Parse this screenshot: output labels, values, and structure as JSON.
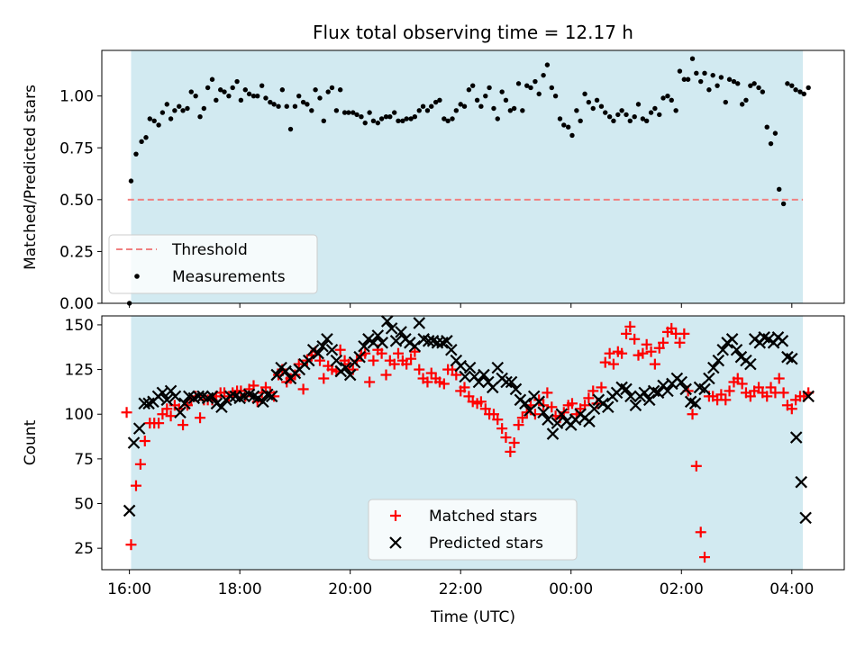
{
  "chart_data": [
    {
      "type": "scatter",
      "title": "Flux total observing time = 12.17 h",
      "xlabel": "",
      "ylabel": "Matched/Predicted stars",
      "xlim": [
        -0.5,
        12.95
      ],
      "ylim": [
        0,
        1.22
      ],
      "yticks": [
        0.0,
        0.25,
        0.5,
        0.75,
        1.0
      ],
      "ytick_labels": [
        "0.00",
        "0.25",
        "0.50",
        "0.75",
        "1.00"
      ],
      "shaded_span": [
        0.03,
        12.2
      ],
      "shade_color": "#add8e6",
      "legend": [
        "Threshold",
        "Measurements"
      ],
      "legend_position": "lower-left",
      "threshold": {
        "name": "Threshold",
        "y": 0.5,
        "x": [
          -0.03,
          12.2
        ],
        "color": "#f08080",
        "style": "dashed"
      },
      "series": [
        {
          "name": "Measurements",
          "color": "#000000",
          "x": [
            0.0,
            0.03,
            0.12,
            0.22,
            0.3,
            0.37,
            0.45,
            0.53,
            0.6,
            0.68,
            0.75,
            0.82,
            0.9,
            0.97,
            1.05,
            1.12,
            1.2,
            1.28,
            1.35,
            1.42,
            1.5,
            1.57,
            1.65,
            1.72,
            1.8,
            1.87,
            1.95,
            2.02,
            2.1,
            2.17,
            2.25,
            2.32,
            2.4,
            2.47,
            2.55,
            2.62,
            2.7,
            2.77,
            2.85,
            2.92,
            3.0,
            3.07,
            3.15,
            3.22,
            3.3,
            3.37,
            3.45,
            3.52,
            3.6,
            3.67,
            3.75,
            3.82,
            3.9,
            3.97,
            4.05,
            4.12,
            4.2,
            4.27,
            4.35,
            4.42,
            4.5,
            4.57,
            4.65,
            4.72,
            4.8,
            4.87,
            4.95,
            5.02,
            5.1,
            5.17,
            5.25,
            5.32,
            5.4,
            5.47,
            5.55,
            5.62,
            5.7,
            5.77,
            5.85,
            5.92,
            6.0,
            6.07,
            6.15,
            6.22,
            6.3,
            6.37,
            6.45,
            6.52,
            6.6,
            6.67,
            6.75,
            6.82,
            6.9,
            6.97,
            7.05,
            7.12,
            7.2,
            7.27,
            7.35,
            7.42,
            7.5,
            7.57,
            7.65,
            7.72,
            7.8,
            7.87,
            7.95,
            8.02,
            8.1,
            8.17,
            8.25,
            8.32,
            8.4,
            8.47,
            8.55,
            8.62,
            8.7,
            8.77,
            8.85,
            8.92,
            9.0,
            9.07,
            9.15,
            9.22,
            9.3,
            9.37,
            9.45,
            9.52,
            9.6,
            9.67,
            9.75,
            9.82,
            9.9,
            9.97,
            10.05,
            10.12,
            10.2,
            10.27,
            10.35,
            10.42,
            10.5,
            10.57,
            10.65,
            10.72,
            10.8,
            10.87,
            10.95,
            11.02,
            11.1,
            11.17,
            11.25,
            11.32,
            11.4,
            11.47,
            11.55,
            11.62,
            11.7,
            11.77,
            11.85,
            11.92,
            12.0,
            12.07,
            12.15,
            12.22,
            12.3
          ],
          "y": [
            0.0,
            0.59,
            0.72,
            0.78,
            0.8,
            0.89,
            0.88,
            0.86,
            0.92,
            0.96,
            0.89,
            0.93,
            0.95,
            0.93,
            0.94,
            1.02,
            1.0,
            0.9,
            0.94,
            1.04,
            1.08,
            0.98,
            1.03,
            1.02,
            1.0,
            1.04,
            1.07,
            0.98,
            1.03,
            1.01,
            1.0,
            1.0,
            1.05,
            0.99,
            0.97,
            0.96,
            0.95,
            1.03,
            0.95,
            0.84,
            0.95,
            1.0,
            0.97,
            0.96,
            0.93,
            1.03,
            0.99,
            0.88,
            1.02,
            1.04,
            0.93,
            1.03,
            0.92,
            0.92,
            0.92,
            0.91,
            0.9,
            0.87,
            0.92,
            0.88,
            0.87,
            0.89,
            0.9,
            0.9,
            0.92,
            0.88,
            0.88,
            0.89,
            0.89,
            0.9,
            0.93,
            0.95,
            0.93,
            0.95,
            0.97,
            0.98,
            0.89,
            0.88,
            0.89,
            0.93,
            0.96,
            0.95,
            1.03,
            1.05,
            0.98,
            0.95,
            1.0,
            1.04,
            0.94,
            0.89,
            1.02,
            0.98,
            0.93,
            0.94,
            1.06,
            0.93,
            1.05,
            1.04,
            1.07,
            1.01,
            1.1,
            1.15,
            1.04,
            1.0,
            0.89,
            0.86,
            0.85,
            0.81,
            0.93,
            0.88,
            1.01,
            0.97,
            0.94,
            0.98,
            0.95,
            0.92,
            0.9,
            0.88,
            0.91,
            0.93,
            0.91,
            0.88,
            0.9,
            0.96,
            0.89,
            0.88,
            0.92,
            0.94,
            0.91,
            0.99,
            1.0,
            0.98,
            0.93,
            1.12,
            1.08,
            1.08,
            1.18,
            1.11,
            1.07,
            1.11,
            1.03,
            1.1,
            1.05,
            1.09,
            0.97,
            1.08,
            1.07,
            1.06,
            0.96,
            0.98,
            1.05,
            1.06,
            1.04,
            1.02,
            0.85,
            0.77,
            0.82,
            0.55,
            0.48,
            1.06,
            1.05,
            1.03,
            1.02,
            1.01,
            1.04
          ]
        }
      ]
    },
    {
      "type": "scatter",
      "title": "",
      "xlabel": "Time (UTC)",
      "ylabel": "Count",
      "xlim": [
        -0.5,
        12.95
      ],
      "ylim": [
        13,
        155
      ],
      "yticks": [
        25,
        50,
        75,
        100,
        125,
        150
      ],
      "xtick_values": [
        0,
        2,
        4,
        6,
        8,
        10,
        12
      ],
      "xtick_labels": [
        "16:00",
        "18:00",
        "20:00",
        "22:00",
        "00:00",
        "02:00",
        "04:00"
      ],
      "shaded_span": [
        0.03,
        12.2
      ],
      "shade_color": "#add8e6",
      "legend": [
        "Matched stars",
        "Predicted stars"
      ],
      "legend_position": "lower-center",
      "series": [
        {
          "name": "Matched stars",
          "marker": "+",
          "color": "#ff0000",
          "x": [
            -0.05,
            0.03,
            0.12,
            0.2,
            0.28,
            0.37,
            0.45,
            0.53,
            0.6,
            0.68,
            0.75,
            0.82,
            0.9,
            0.97,
            1.05,
            1.12,
            1.2,
            1.28,
            1.35,
            1.42,
            1.5,
            1.57,
            1.65,
            1.72,
            1.8,
            1.87,
            1.95,
            2.02,
            2.1,
            2.17,
            2.25,
            2.32,
            2.4,
            2.47,
            2.55,
            2.62,
            2.7,
            2.77,
            2.85,
            2.92,
            3.0,
            3.07,
            3.15,
            3.22,
            3.3,
            3.37,
            3.45,
            3.52,
            3.6,
            3.67,
            3.75,
            3.82,
            3.9,
            3.97,
            4.05,
            4.12,
            4.2,
            4.27,
            4.35,
            4.42,
            4.5,
            4.57,
            4.65,
            4.72,
            4.8,
            4.87,
            4.95,
            5.02,
            5.1,
            5.17,
            5.25,
            5.32,
            5.4,
            5.47,
            5.55,
            5.62,
            5.7,
            5.77,
            5.85,
            5.92,
            6.0,
            6.07,
            6.15,
            6.22,
            6.3,
            6.37,
            6.45,
            6.52,
            6.6,
            6.67,
            6.75,
            6.82,
            6.9,
            6.97,
            7.05,
            7.12,
            7.2,
            7.27,
            7.35,
            7.42,
            7.5,
            7.57,
            7.65,
            7.72,
            7.8,
            7.87,
            7.95,
            8.02,
            8.1,
            8.17,
            8.25,
            8.32,
            8.4,
            8.47,
            8.55,
            8.62,
            8.7,
            8.77,
            8.85,
            8.92,
            9.0,
            9.07,
            9.15,
            9.22,
            9.3,
            9.37,
            9.45,
            9.52,
            9.6,
            9.67,
            9.75,
            9.82,
            9.9,
            9.97,
            10.05,
            10.12,
            10.2,
            10.27,
            10.35,
            10.42,
            10.5,
            10.57,
            10.65,
            10.72,
            10.8,
            10.87,
            10.95,
            11.02,
            11.1,
            11.17,
            11.25,
            11.32,
            11.4,
            11.47,
            11.55,
            11.62,
            11.7,
            11.77,
            11.85,
            11.92,
            12.0,
            12.07,
            12.15,
            12.22,
            12.3
          ],
          "y": [
            101,
            27,
            60,
            72,
            85,
            95,
            95,
            95,
            100,
            103,
            99,
            105,
            103,
            94,
            105,
            108,
            110,
            98,
            108,
            108,
            108,
            110,
            112,
            112,
            110,
            112,
            113,
            113,
            110,
            114,
            116,
            107,
            112,
            115,
            112,
            110,
            122,
            125,
            118,
            120,
            122,
            128,
            114,
            130,
            133,
            135,
            130,
            120,
            127,
            125,
            124,
            136,
            130,
            128,
            125,
            130,
            133,
            134,
            118,
            130,
            136,
            134,
            122,
            130,
            128,
            134,
            130,
            128,
            131,
            135,
            125,
            120,
            118,
            123,
            120,
            118,
            117,
            125,
            125,
            122,
            113,
            115,
            110,
            107,
            106,
            107,
            103,
            100,
            100,
            97,
            92,
            87,
            79,
            84,
            94,
            98,
            101,
            105,
            100,
            108,
            105,
            112,
            104,
            99,
            98,
            101,
            105,
            106,
            100,
            103,
            105,
            109,
            113,
            106,
            115,
            129,
            134,
            128,
            135,
            134,
            145,
            149,
            142,
            133,
            134,
            139,
            135,
            128,
            137,
            140,
            146,
            148,
            145,
            140,
            145,
            113,
            100,
            71,
            34,
            20,
            110,
            110,
            108,
            111,
            108,
            113,
            118,
            120,
            117,
            112,
            110,
            113,
            115,
            112,
            110,
            115,
            112,
            120,
            112,
            105,
            103,
            108,
            110,
            110,
            112
          ]
        },
        {
          "name": "Predicted stars",
          "marker": "x",
          "color": "#000000",
          "x": [
            0.0,
            0.08,
            0.18,
            0.27,
            0.35,
            0.43,
            0.52,
            0.6,
            0.68,
            0.75,
            0.83,
            0.92,
            1.0,
            1.08,
            1.17,
            1.25,
            1.33,
            1.42,
            1.5,
            1.58,
            1.67,
            1.75,
            1.83,
            1.92,
            2.0,
            2.08,
            2.17,
            2.25,
            2.33,
            2.42,
            2.5,
            2.58,
            2.67,
            2.75,
            2.83,
            2.92,
            3.0,
            3.08,
            3.17,
            3.25,
            3.33,
            3.42,
            3.5,
            3.58,
            3.67,
            3.75,
            3.83,
            3.92,
            4.0,
            4.08,
            4.17,
            4.25,
            4.33,
            4.42,
            4.5,
            4.58,
            4.67,
            4.75,
            4.83,
            4.92,
            5.0,
            5.08,
            5.17,
            5.25,
            5.33,
            5.42,
            5.5,
            5.58,
            5.67,
            5.75,
            5.83,
            5.92,
            6.0,
            6.08,
            6.17,
            6.25,
            6.33,
            6.42,
            6.5,
            6.58,
            6.67,
            6.75,
            6.83,
            6.92,
            7.0,
            7.08,
            7.17,
            7.25,
            7.33,
            7.42,
            7.5,
            7.58,
            7.67,
            7.75,
            7.83,
            7.92,
            8.0,
            8.08,
            8.17,
            8.25,
            8.33,
            8.42,
            8.5,
            8.58,
            8.67,
            8.75,
            8.83,
            8.92,
            9.0,
            9.08,
            9.17,
            9.25,
            9.33,
            9.42,
            9.5,
            9.58,
            9.67,
            9.75,
            9.83,
            9.92,
            10.0,
            10.08,
            10.17,
            10.25,
            10.33,
            10.42,
            10.5,
            10.58,
            10.67,
            10.75,
            10.83,
            10.92,
            11.0,
            11.08,
            11.17,
            11.25,
            11.33,
            11.42,
            11.5,
            11.58,
            11.67,
            11.75,
            11.83,
            11.92,
            12.0,
            12.08,
            12.17,
            12.25,
            12.3
          ],
          "y": [
            46,
            84,
            92,
            106,
            106,
            107,
            110,
            112,
            108,
            113,
            110,
            101,
            106,
            110,
            109,
            110,
            110,
            109,
            110,
            106,
            104,
            108,
            110,
            110,
            109,
            110,
            111,
            110,
            109,
            107,
            111,
            110,
            122,
            126,
            124,
            120,
            123,
            125,
            128,
            130,
            136,
            134,
            138,
            142,
            136,
            130,
            124,
            126,
            122,
            129,
            132,
            138,
            142,
            140,
            144,
            140,
            152,
            148,
            141,
            146,
            142,
            140,
            138,
            151,
            142,
            141,
            141,
            140,
            140,
            141,
            136,
            130,
            127,
            121,
            126,
            121,
            118,
            122,
            118,
            115,
            126,
            120,
            118,
            118,
            114,
            108,
            106,
            102,
            110,
            107,
            101,
            97,
            89,
            95,
            100,
            96,
            94,
            97,
            100,
            98,
            96,
            103,
            108,
            106,
            104,
            110,
            112,
            115,
            114,
            110,
            105,
            110,
            112,
            108,
            113,
            112,
            116,
            113,
            117,
            120,
            118,
            114,
            107,
            106,
            115,
            114,
            120,
            126,
            130,
            136,
            140,
            142,
            136,
            132,
            130,
            128,
            142,
            140,
            143,
            142,
            140,
            143,
            141,
            132,
            131,
            87,
            62,
            42,
            110
          ]
        }
      ]
    }
  ]
}
